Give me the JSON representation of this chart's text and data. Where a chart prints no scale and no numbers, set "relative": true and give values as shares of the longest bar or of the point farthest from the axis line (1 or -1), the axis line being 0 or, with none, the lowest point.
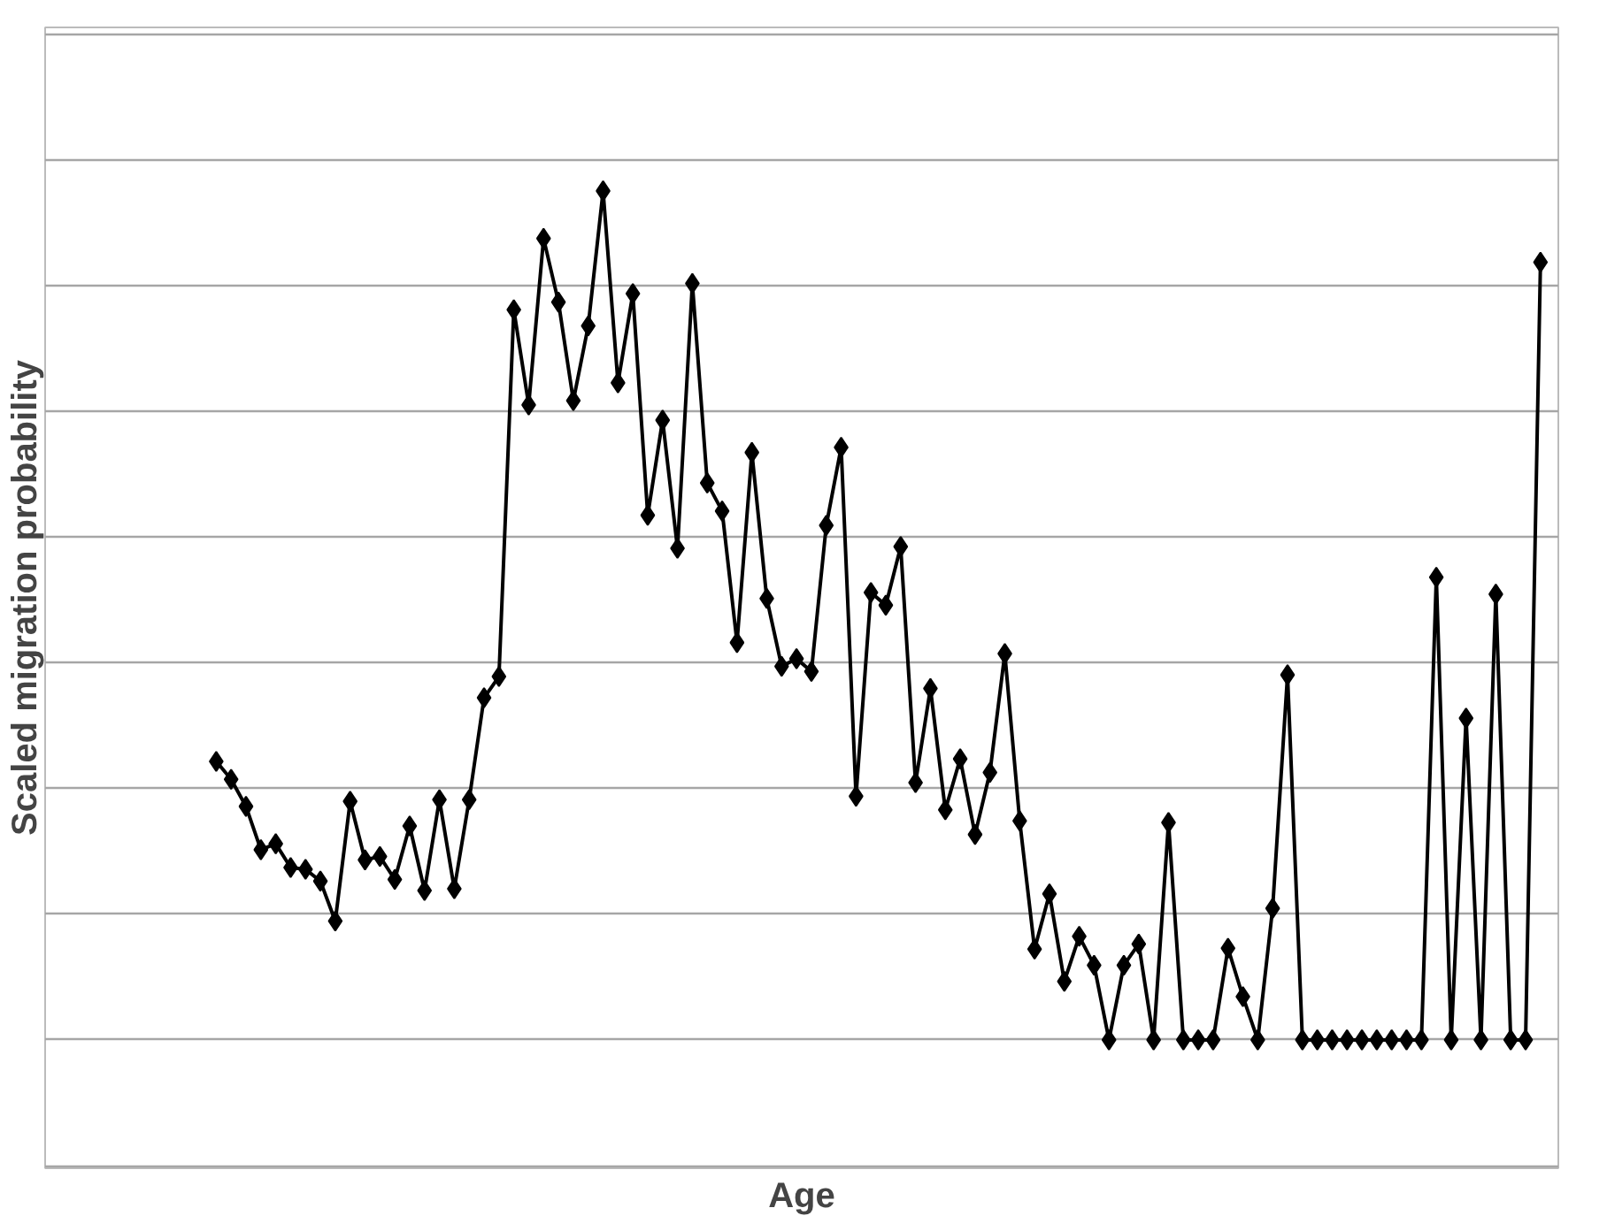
{
  "chart_data": {
    "type": "line",
    "relative": true,
    "xlabel": "Age",
    "ylabel": "Scaled migration probability",
    "grid": "y",
    "marker": "diamond",
    "line_style": "solid",
    "categories": [
      null,
      null,
      null,
      null,
      null,
      null,
      null,
      null,
      null,
      null,
      null,
      null,
      null,
      null,
      null,
      null,
      null,
      null,
      null,
      null,
      null,
      null,
      null,
      null,
      null,
      null,
      null,
      null,
      null,
      null,
      null,
      null,
      null,
      null,
      null,
      null,
      null,
      null,
      null,
      null,
      null,
      null,
      null,
      null,
      null,
      null,
      null,
      null,
      null,
      null,
      null,
      null,
      null,
      null,
      null,
      null,
      null,
      null,
      null,
      null,
      null,
      null,
      null,
      null,
      null,
      null,
      null,
      null,
      null,
      null,
      null,
      null,
      null,
      null,
      null,
      null,
      null,
      null,
      null,
      null,
      null,
      null,
      null,
      null,
      null,
      null,
      null,
      null,
      null,
      null
    ],
    "series": [
      {
        "color": "#000000",
        "values": [
          0.328,
          0.307,
          0.275,
          0.224,
          0.231,
          0.203,
          0.201,
          0.187,
          0.14,
          0.281,
          0.212,
          0.216,
          0.189,
          0.252,
          0.176,
          0.283,
          0.178,
          0.283,
          0.403,
          0.428,
          0.86,
          0.748,
          0.944,
          0.869,
          0.753,
          0.841,
          1,
          0.774,
          0.879,
          0.618,
          0.73,
          0.579,
          0.891,
          0.656,
          0.623,
          0.468,
          0.692,
          0.52,
          0.44,
          0.449,
          0.434,
          0.606,
          0.698,
          0.287,
          0.527,
          0.512,
          0.581,
          0.303,
          0.414,
          0.271,
          0.331,
          0.242,
          0.315,
          0.455,
          0.258,
          0.107,
          0.172,
          0.069,
          0.122,
          0.088,
          0,
          0.088,
          0.113,
          0,
          0.256,
          0,
          0,
          0,
          0.108,
          0.051,
          0,
          0.155,
          0.43,
          0,
          0,
          0,
          0,
          0,
          0,
          0,
          0,
          0,
          0.545,
          0,
          0.379,
          0,
          0.525,
          0,
          0,
          0.916
        ]
      }
    ]
  }
}
